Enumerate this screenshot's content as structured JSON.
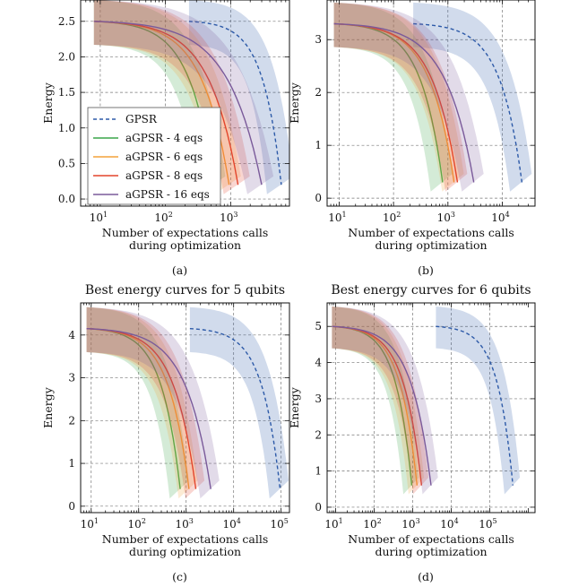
{
  "colors": {
    "GPSR": "#2d5aa8",
    "aGPSR - 4 eqs": "#3aa64a",
    "aGPSR - 6 eqs": "#f3a23a",
    "aGPSR - 8 eqs": "#e3452c",
    "aGPSR - 16 eqs": "#7a5a9a"
  },
  "legend": [
    {
      "name": "GPSR",
      "style": "dashed"
    },
    {
      "name": "aGPSR - 4 eqs",
      "style": "solid"
    },
    {
      "name": "aGPSR - 6 eqs",
      "style": "solid"
    },
    {
      "name": "aGPSR - 8 eqs",
      "style": "solid"
    },
    {
      "name": "aGPSR - 16 eqs",
      "style": "solid"
    }
  ],
  "chart_data": [
    {
      "type": "line",
      "panel": "a",
      "label": "(a)",
      "title": "",
      "xlabel": "Number of expectations calls\nduring optimization",
      "ylabel": "Energy",
      "xscale": "log",
      "xlim": [
        5,
        8000
      ],
      "ylim": [
        -0.1,
        2.8
      ],
      "xticks": [
        1,
        2,
        3
      ],
      "yticks": [
        0.0,
        0.5,
        1.0,
        1.5,
        2.0,
        2.5
      ],
      "ytick_labels": [
        "0.0",
        "0.5",
        "1.0",
        "1.5",
        "2.0",
        "2.5"
      ],
      "legend_location": "middle-left",
      "series": [
        {
          "name": "GPSR",
          "x0": 230,
          "x1": 6000,
          "y0": 2.5,
          "y1": 0.2,
          "band": 0.3
        },
        {
          "name": "aGPSR - 4 eqs",
          "x0": 8,
          "x1": 550,
          "y0": 2.5,
          "y1": 0.2,
          "band": 0.3
        },
        {
          "name": "aGPSR - 6 eqs",
          "x0": 8,
          "x1": 950,
          "y0": 2.5,
          "y1": 0.2,
          "band": 0.3
        },
        {
          "name": "aGPSR - 8 eqs",
          "x0": 8,
          "x1": 1300,
          "y0": 2.5,
          "y1": 0.2,
          "band": 0.3
        },
        {
          "name": "aGPSR - 16 eqs",
          "x0": 8,
          "x1": 3000,
          "y0": 2.5,
          "y1": 0.2,
          "band": 0.3
        }
      ]
    },
    {
      "type": "line",
      "panel": "b",
      "label": "(b)",
      "title": "",
      "xlabel": "Number of expectations calls\nduring optimization",
      "ylabel": "Energy",
      "xscale": "log",
      "xlim": [
        6,
        40000
      ],
      "ylim": [
        -0.15,
        3.75
      ],
      "xticks": [
        1,
        2,
        3,
        4
      ],
      "yticks": [
        0,
        1,
        2,
        3
      ],
      "ytick_labels": [
        "0",
        "1",
        "2",
        "3"
      ],
      "series": [
        {
          "name": "GPSR",
          "x0": 230,
          "x1": 23000,
          "y0": 3.3,
          "y1": 0.3,
          "band": 0.4
        },
        {
          "name": "aGPSR - 4 eqs",
          "x0": 8,
          "x1": 800,
          "y0": 3.3,
          "y1": 0.3,
          "band": 0.4
        },
        {
          "name": "aGPSR - 6 eqs",
          "x0": 8,
          "x1": 1300,
          "y0": 3.3,
          "y1": 0.3,
          "band": 0.4
        },
        {
          "name": "aGPSR - 8 eqs",
          "x0": 8,
          "x1": 1500,
          "y0": 3.3,
          "y1": 0.3,
          "band": 0.4
        },
        {
          "name": "aGPSR - 16 eqs",
          "x0": 8,
          "x1": 3000,
          "y0": 3.3,
          "y1": 0.3,
          "band": 0.4
        }
      ]
    },
    {
      "type": "line",
      "panel": "c",
      "label": "(c)",
      "title": "Best energy curves for 5 qubits",
      "xlabel": "Number of expectations calls\nduring optimization",
      "ylabel": "Energy",
      "xscale": "log",
      "xlim": [
        6,
        150000
      ],
      "ylim": [
        -0.15,
        4.75
      ],
      "xticks": [
        1,
        2,
        3,
        4,
        5
      ],
      "yticks": [
        0,
        1,
        2,
        3,
        4
      ],
      "ytick_labels": [
        "0",
        "1",
        "2",
        "3",
        "4"
      ],
      "series": [
        {
          "name": "GPSR",
          "x0": 1200,
          "x1": 95000,
          "y0": 4.15,
          "y1": 0.4,
          "band": 0.5
        },
        {
          "name": "aGPSR - 4 eqs",
          "x0": 8,
          "x1": 750,
          "y0": 4.15,
          "y1": 0.4,
          "band": 0.5
        },
        {
          "name": "aGPSR - 6 eqs",
          "x0": 8,
          "x1": 1150,
          "y0": 4.15,
          "y1": 0.4,
          "band": 0.5
        },
        {
          "name": "aGPSR - 8 eqs",
          "x0": 8,
          "x1": 1600,
          "y0": 4.15,
          "y1": 0.4,
          "band": 0.5
        },
        {
          "name": "aGPSR - 16 eqs",
          "x0": 8,
          "x1": 3300,
          "y0": 4.15,
          "y1": 0.4,
          "band": 0.5
        }
      ]
    },
    {
      "type": "line",
      "panel": "d",
      "label": "(d)",
      "title": "Best energy curves for 6 qubits",
      "xlabel": "Number of expectations calls\nduring optimization",
      "ylabel": "Energy",
      "xscale": "log",
      "xlim": [
        6,
        1500000
      ],
      "ylim": [
        -0.15,
        5.65
      ],
      "xticks": [
        1,
        2,
        3,
        4,
        5
      ],
      "yticks": [
        0,
        1,
        2,
        3,
        4,
        5
      ],
      "ytick_labels": [
        "0",
        "1",
        "2",
        "3",
        "4",
        "5"
      ],
      "series": [
        {
          "name": "GPSR",
          "x0": 4000,
          "x1": 400000,
          "y0": 5.0,
          "y1": 0.6,
          "band": 0.55
        },
        {
          "name": "aGPSR - 4 eqs",
          "x0": 8,
          "x1": 950,
          "y0": 5.0,
          "y1": 0.6,
          "band": 0.55
        },
        {
          "name": "aGPSR - 6 eqs",
          "x0": 8,
          "x1": 1300,
          "y0": 5.0,
          "y1": 0.6,
          "band": 0.55
        },
        {
          "name": "aGPSR - 8 eqs",
          "x0": 8,
          "x1": 1700,
          "y0": 5.0,
          "y1": 0.6,
          "band": 0.55
        },
        {
          "name": "aGPSR - 16 eqs",
          "x0": 8,
          "x1": 3000,
          "y0": 5.0,
          "y1": 0.6,
          "band": 0.55
        }
      ]
    }
  ]
}
